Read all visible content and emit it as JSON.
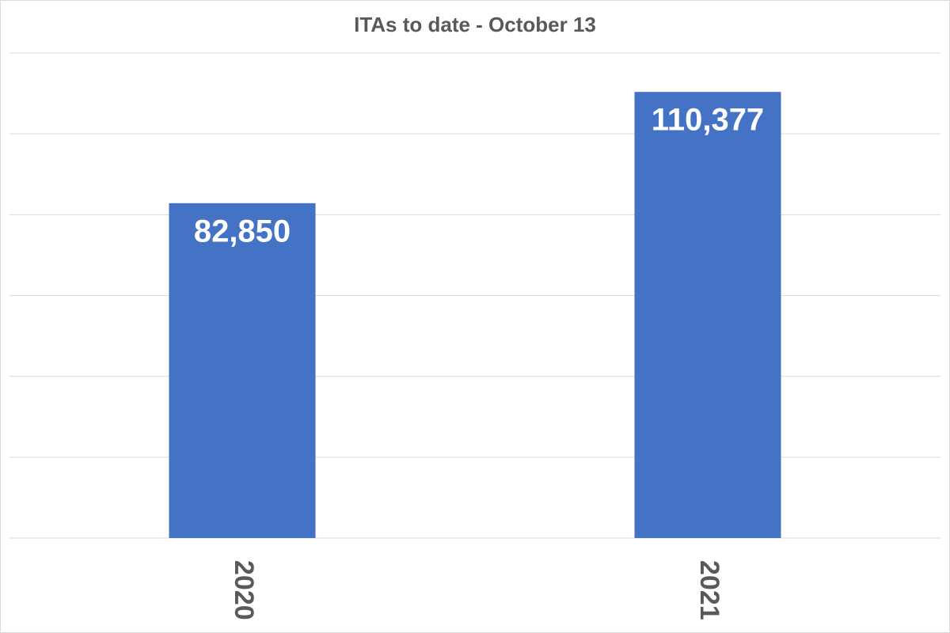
{
  "chart_data": {
    "type": "bar",
    "title": "ITAs to date - October 13",
    "categories": [
      "2020",
      "2021"
    ],
    "values": [
      82850,
      110377
    ],
    "value_labels": [
      "82,850",
      "110,377"
    ],
    "color": "#4472c4",
    "ylim": [
      0,
      120000
    ],
    "yticks": [
      0,
      20000,
      40000,
      60000,
      80000,
      100000,
      120000
    ],
    "grid": true
  }
}
